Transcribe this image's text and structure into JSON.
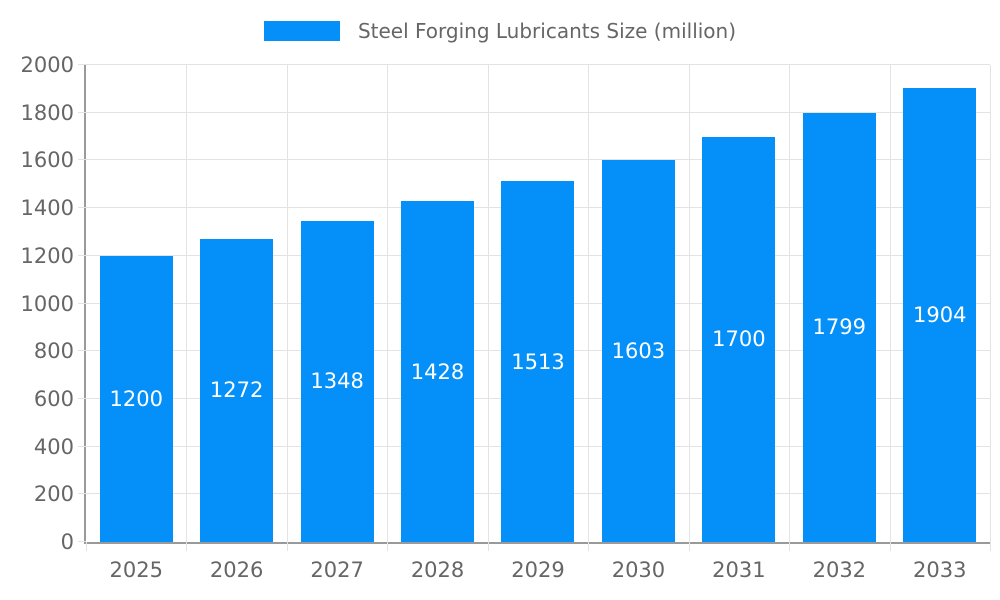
{
  "chart_data": {
    "type": "bar",
    "title": "Steel Forging Lubricants Size (million)",
    "legend_position": "top",
    "categories": [
      "2025",
      "2026",
      "2027",
      "2028",
      "2029",
      "2030",
      "2031",
      "2032",
      "2033"
    ],
    "series": [
      {
        "name": "Steel Forging Lubricants Size (million)",
        "values": [
          1200,
          1272,
          1348,
          1428,
          1513,
          1603,
          1700,
          1799,
          1904
        ]
      }
    ],
    "value_labels_shown": true,
    "xlabel": "",
    "ylabel": "",
    "ylim": [
      0,
      2000
    ],
    "yticks": [
      0,
      200,
      400,
      600,
      800,
      1000,
      1200,
      1400,
      1600,
      1800,
      2000
    ],
    "grid": true,
    "colors": {
      "bar": "#0490f8",
      "value_label": "#ffffff",
      "tick_label": "#666666",
      "legend_label": "#666666",
      "grid_line": "#e3e3e3",
      "axis_line": "#9a9a9a",
      "background": "#ffffff"
    }
  }
}
